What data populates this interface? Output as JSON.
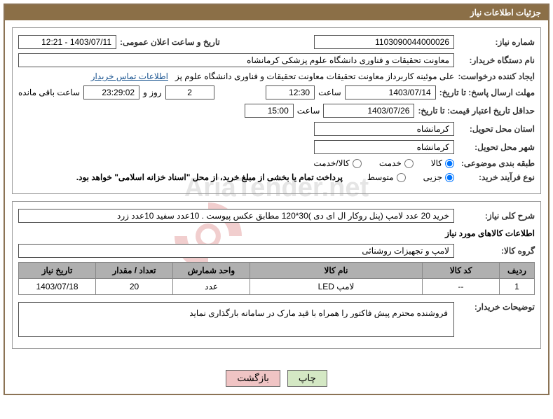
{
  "header": {
    "title": "جزئیات اطلاعات نیاز"
  },
  "form": {
    "need_number_label": "شماره نیاز:",
    "need_number": "1103090044000026",
    "announce_label": "تاریخ و ساعت اعلان عمومی:",
    "announce_value": "1403/07/11 - 12:21",
    "buyer_label": "نام دستگاه خریدار:",
    "buyer_value": "معاونت تحقیقات و فناوری دانشگاه علوم پزشکی کرمانشاه",
    "requester_label": "ایجاد کننده درخواست:",
    "requester_value": "علی موئینه کاربرداز معاونت تحقیقات معاونت تحقیقات و فناوری دانشگاه علوم پز",
    "contact_link": "اطلاعات تماس خریدار",
    "deadline_label": "مهلت ارسال پاسخ: تا تاریخ:",
    "deadline_date": "1403/07/14",
    "time_label": "ساعت",
    "deadline_time": "12:30",
    "days_value": "2",
    "days_label": "روز و",
    "countdown": "23:29:02",
    "remain_label": "ساعت باقی مانده",
    "validity_label": "حداقل تاریخ اعتبار قیمت: تا تاریخ:",
    "validity_date": "1403/07/26",
    "validity_time": "15:00",
    "province_label": "استان محل تحویل:",
    "province_value": "کرمانشاه",
    "city_label": "شهر محل تحویل:",
    "city_value": "کرمانشاه",
    "category_label": "طبقه بندی موضوعی:",
    "cat_goods": "کالا",
    "cat_service": "خدمت",
    "cat_both": "کالا/خدمت",
    "process_label": "نوع فرآیند خرید:",
    "proc_partial": "جزیی",
    "proc_medium": "متوسط",
    "payment_note": "پرداخت تمام یا بخشی از مبلغ خرید، از محل \"اسناد خزانه اسلامی\" خواهد بود.",
    "summary_label": "شرح کلی نیاز:",
    "summary_value": "خرید 20 عدد لامپ (پنل روکار ال ای دی )30*120 مطابق عکس پیوست . 10عدد سفید 10عدد زرد",
    "items_title": "اطلاعات کالاهای مورد نیاز",
    "group_label": "گروه کالا:",
    "group_value": "لامپ و تجهیزات روشنائی",
    "buyer_notes_label": "توضیحات خریدار:",
    "buyer_notes_value": "فروشنده محترم پیش فاکتور را همراه با قید مارک در سامانه بارگذاری نماید"
  },
  "table": {
    "headers": {
      "row": "ردیف",
      "code": "کد کالا",
      "name": "نام کالا",
      "unit": "واحد شمارش",
      "qty": "تعداد / مقدار",
      "date": "تاریخ نیاز"
    },
    "rows": [
      {
        "row": "1",
        "code": "--",
        "name": "لامپ LED",
        "unit": "عدد",
        "qty": "20",
        "date": "1403/07/18"
      }
    ]
  },
  "buttons": {
    "print": "چاپ",
    "back": "بازگشت"
  },
  "watermark": "AriaTender.net",
  "colors": {
    "header_bg": "#8b6f47",
    "border": "#8b7355",
    "th_bg": "#b0b0b0"
  }
}
